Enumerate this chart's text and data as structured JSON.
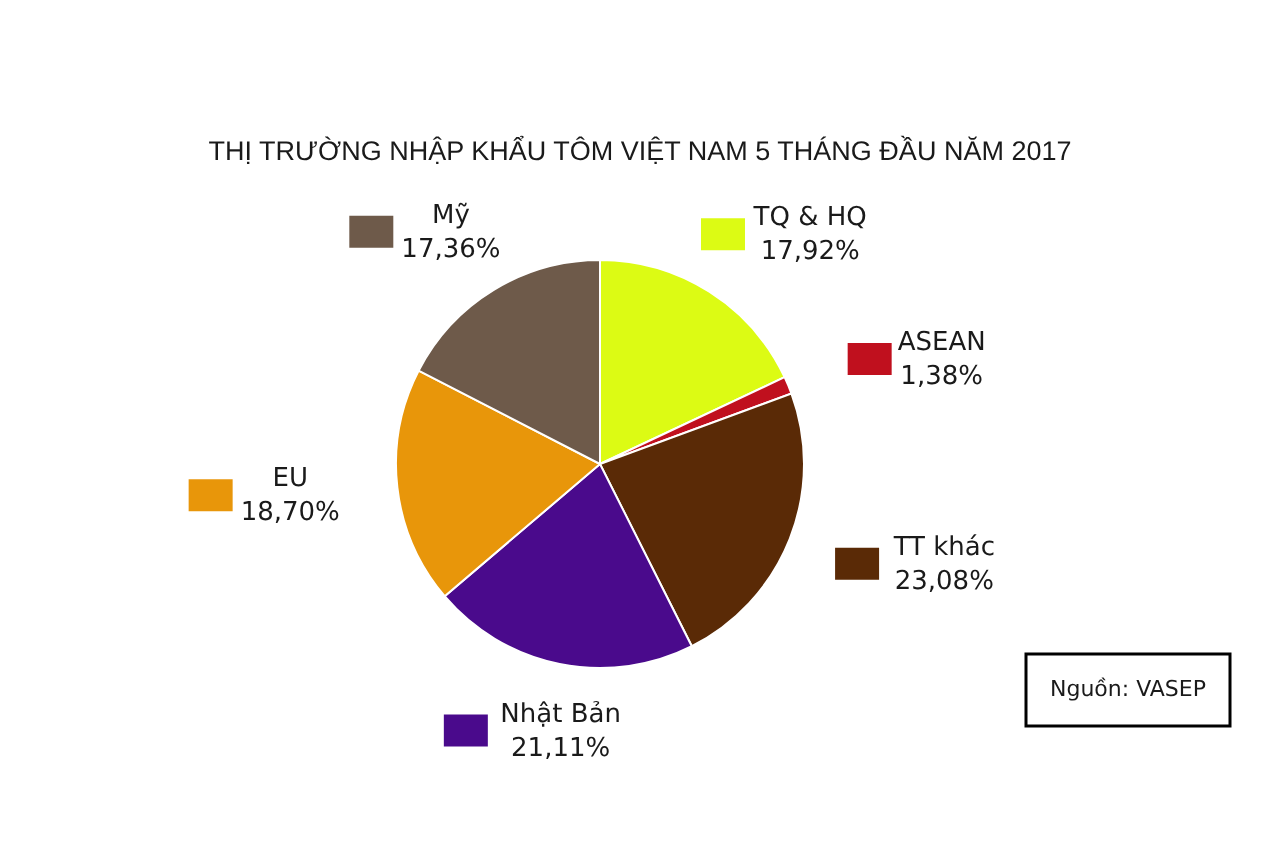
{
  "chart_data": {
    "type": "pie",
    "title": "THỊ TRƯỜNG NHẬP KHẨU TÔM VIỆT NAM 5 THÁNG ĐẦU NĂM 2017",
    "categories": [
      "TQ & HQ",
      "ASEAN",
      "TT khác",
      "Nhật Bản",
      "EU",
      "Mỹ"
    ],
    "values": [
      17.92,
      1.38,
      23.08,
      21.11,
      18.7,
      17.36
    ],
    "colors": [
      "#dcfb14",
      "#c0101e",
      "#5a2a06",
      "#4a0a8c",
      "#e8960a",
      "#6e5a4a"
    ],
    "value_labels": [
      "17,92%",
      "1,38%",
      "23,08%",
      "21,11%",
      "18,70%",
      "17,36%"
    ],
    "legend": "right",
    "annotations": [
      "Nguồn: VASEP"
    ]
  }
}
